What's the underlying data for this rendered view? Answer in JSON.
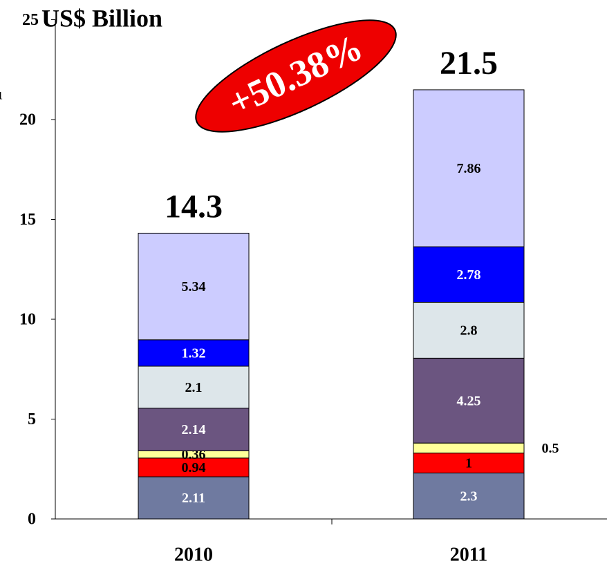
{
  "chart_data": {
    "type": "stacked_bar",
    "axis_title": "US$ Billion",
    "annotation": "+50.38%",
    "side_label": "1",
    "categories": [
      "2010",
      "2011"
    ],
    "series": [
      {
        "color": "#6f7aa0",
        "label_color": "#ffffff",
        "values": [
          2.11,
          2.3
        ]
      },
      {
        "color": "#ff0000",
        "label_color": "#000000",
        "values": [
          0.94,
          1
        ]
      },
      {
        "color": "#ffff99",
        "label_color": "#000000",
        "values": [
          0.36,
          0.5
        ]
      },
      {
        "color": "#6b5580",
        "label_color": "#ffffff",
        "values": [
          2.14,
          4.25
        ]
      },
      {
        "color": "#dde6ea",
        "label_color": "#000000",
        "values": [
          2.1,
          2.8
        ]
      },
      {
        "color": "#0000ff",
        "label_color": "#ffffff",
        "values": [
          1.32,
          2.78
        ]
      },
      {
        "color": "#ccccff",
        "label_color": "#000000",
        "values": [
          5.34,
          7.86
        ]
      }
    ],
    "totals": [
      14.3,
      21.5
    ],
    "ylim": [
      0,
      25
    ],
    "yticks": [
      0,
      5,
      10,
      15,
      20,
      25
    ]
  }
}
